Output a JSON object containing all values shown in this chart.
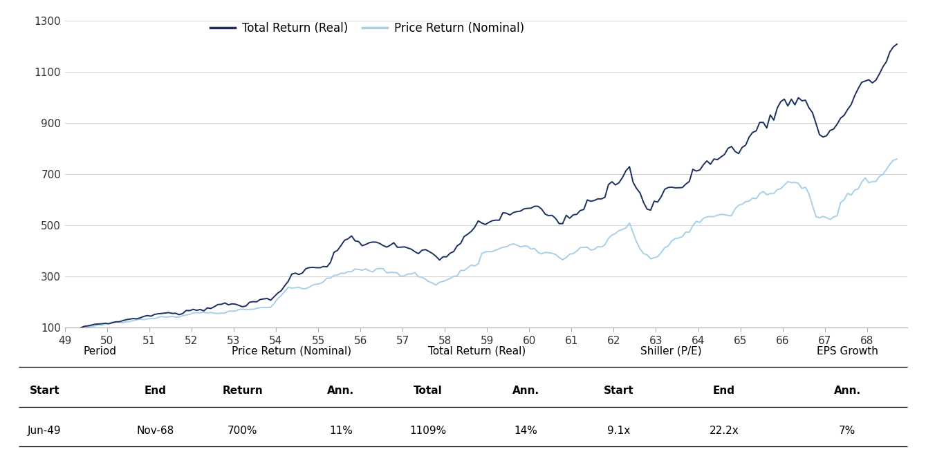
{
  "legend_labels": [
    "Total Return (Real)",
    "Price Return (Nominal)"
  ],
  "line_colors": [
    "#1b2f5e",
    "#a8cfe8"
  ],
  "ylim": [
    100,
    1300
  ],
  "yticks": [
    100,
    300,
    500,
    700,
    900,
    1100,
    1300
  ],
  "ytick_labels": [
    "100",
    "300",
    "500",
    "700",
    "900",
    "1100",
    "1300"
  ],
  "xtick_years": [
    1949,
    1950,
    1951,
    1952,
    1953,
    1954,
    1955,
    1956,
    1957,
    1958,
    1959,
    1960,
    1961,
    1962,
    1963,
    1964,
    1965,
    1966,
    1967,
    1968
  ],
  "xtick_labels": [
    "49",
    "50",
    "51",
    "52",
    "53",
    "54",
    "55",
    "56",
    "57",
    "58",
    "59",
    "60",
    "61",
    "62",
    "63",
    "64",
    "65",
    "66",
    "67",
    "68"
  ],
  "table_group_headers": [
    [
      0.108,
      "Period"
    ],
    [
      0.315,
      "Price Return (Nominal)"
    ],
    [
      0.515,
      "Total Return (Real)"
    ],
    [
      0.725,
      "Shiller (P/E)"
    ],
    [
      0.915,
      "EPS Growth"
    ]
  ],
  "table_col_headers": [
    [
      0.048,
      "Start"
    ],
    [
      0.168,
      "End"
    ],
    [
      0.262,
      "Return"
    ],
    [
      0.368,
      "Ann."
    ],
    [
      0.462,
      "Total"
    ],
    [
      0.568,
      "Ann."
    ],
    [
      0.668,
      "Start"
    ],
    [
      0.782,
      "End"
    ],
    [
      0.915,
      "Ann."
    ]
  ],
  "table_data": [
    "Jun-49",
    "Nov-68",
    "700%",
    "11%",
    "1109%",
    "14%",
    "9.1x",
    "22.2x",
    "7%"
  ],
  "background_color": "#ffffff",
  "line_width": 1.4
}
